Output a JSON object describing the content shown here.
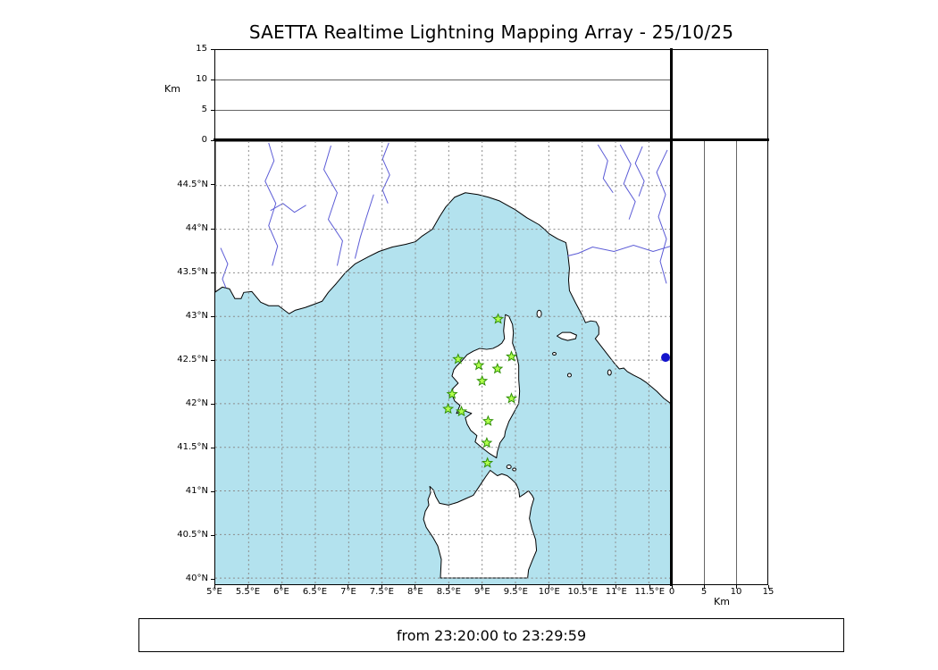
{
  "title": "SAETTA Realtime Lightning Mapping Array - 25/10/25",
  "footer": {
    "text": "from 23:20:00 to 23:29:59"
  },
  "axes": {
    "altitude": {
      "label": "Km",
      "ticks": [
        0,
        5,
        10,
        15
      ]
    },
    "right_altitude": {
      "label": "Km",
      "ticks": [
        0,
        5,
        10,
        15
      ]
    },
    "lat_ticks": [
      "40°N",
      "40.5°N",
      "41°N",
      "41.5°N",
      "42°N",
      "42.5°N",
      "43°N",
      "43.5°N",
      "44°N",
      "44.5°N"
    ],
    "lon_ticks": [
      "5°E",
      "5.5°E",
      "6°E",
      "6.5°E",
      "7°E",
      "7.5°E",
      "8°E",
      "8.5°E",
      "9°E",
      "9.5°E",
      "10°E",
      "10.5°E",
      "11°E",
      "11.5°E"
    ]
  },
  "colors": {
    "sea": "#b3e2ee",
    "land": "#ffffff",
    "coast": "#000000",
    "river": "#5b5bd6",
    "grid": "#8a8a8a",
    "station_fill": "#b0ff4d",
    "station_stroke": "#2f8f06",
    "detection": "#1414cc"
  },
  "chart_data": {
    "type": "scatter",
    "title": "SAETTA Realtime Lightning Mapping Array - 25/10/25",
    "time_window": "from 23:20:00 to 23:29:59",
    "map_extent": {
      "lon_min": 5.0,
      "lon_max": 11.83,
      "lat_min": 39.93,
      "lat_max": 45.01
    },
    "grid": {
      "on": true,
      "style": "dashed",
      "step_deg": 0.5
    },
    "altitude_axis_km": {
      "range": [
        0,
        15
      ],
      "ticks": [
        0,
        5,
        10,
        15
      ]
    },
    "legend": "none",
    "series": [
      {
        "name": "lma-stations",
        "marker": "star",
        "points_lon_lat": [
          [
            9.24,
            42.97
          ],
          [
            8.64,
            42.51
          ],
          [
            8.95,
            42.44
          ],
          [
            9.23,
            42.4
          ],
          [
            9.44,
            42.54
          ],
          [
            9.0,
            42.26
          ],
          [
            8.55,
            42.11
          ],
          [
            9.44,
            42.06
          ],
          [
            8.49,
            41.94
          ],
          [
            8.69,
            41.91
          ],
          [
            9.09,
            41.8
          ],
          [
            9.07,
            41.55
          ],
          [
            9.08,
            41.32
          ]
        ]
      },
      {
        "name": "detection-point",
        "marker": "circle",
        "points_lon_lat": [
          [
            11.75,
            42.53
          ]
        ]
      }
    ]
  }
}
